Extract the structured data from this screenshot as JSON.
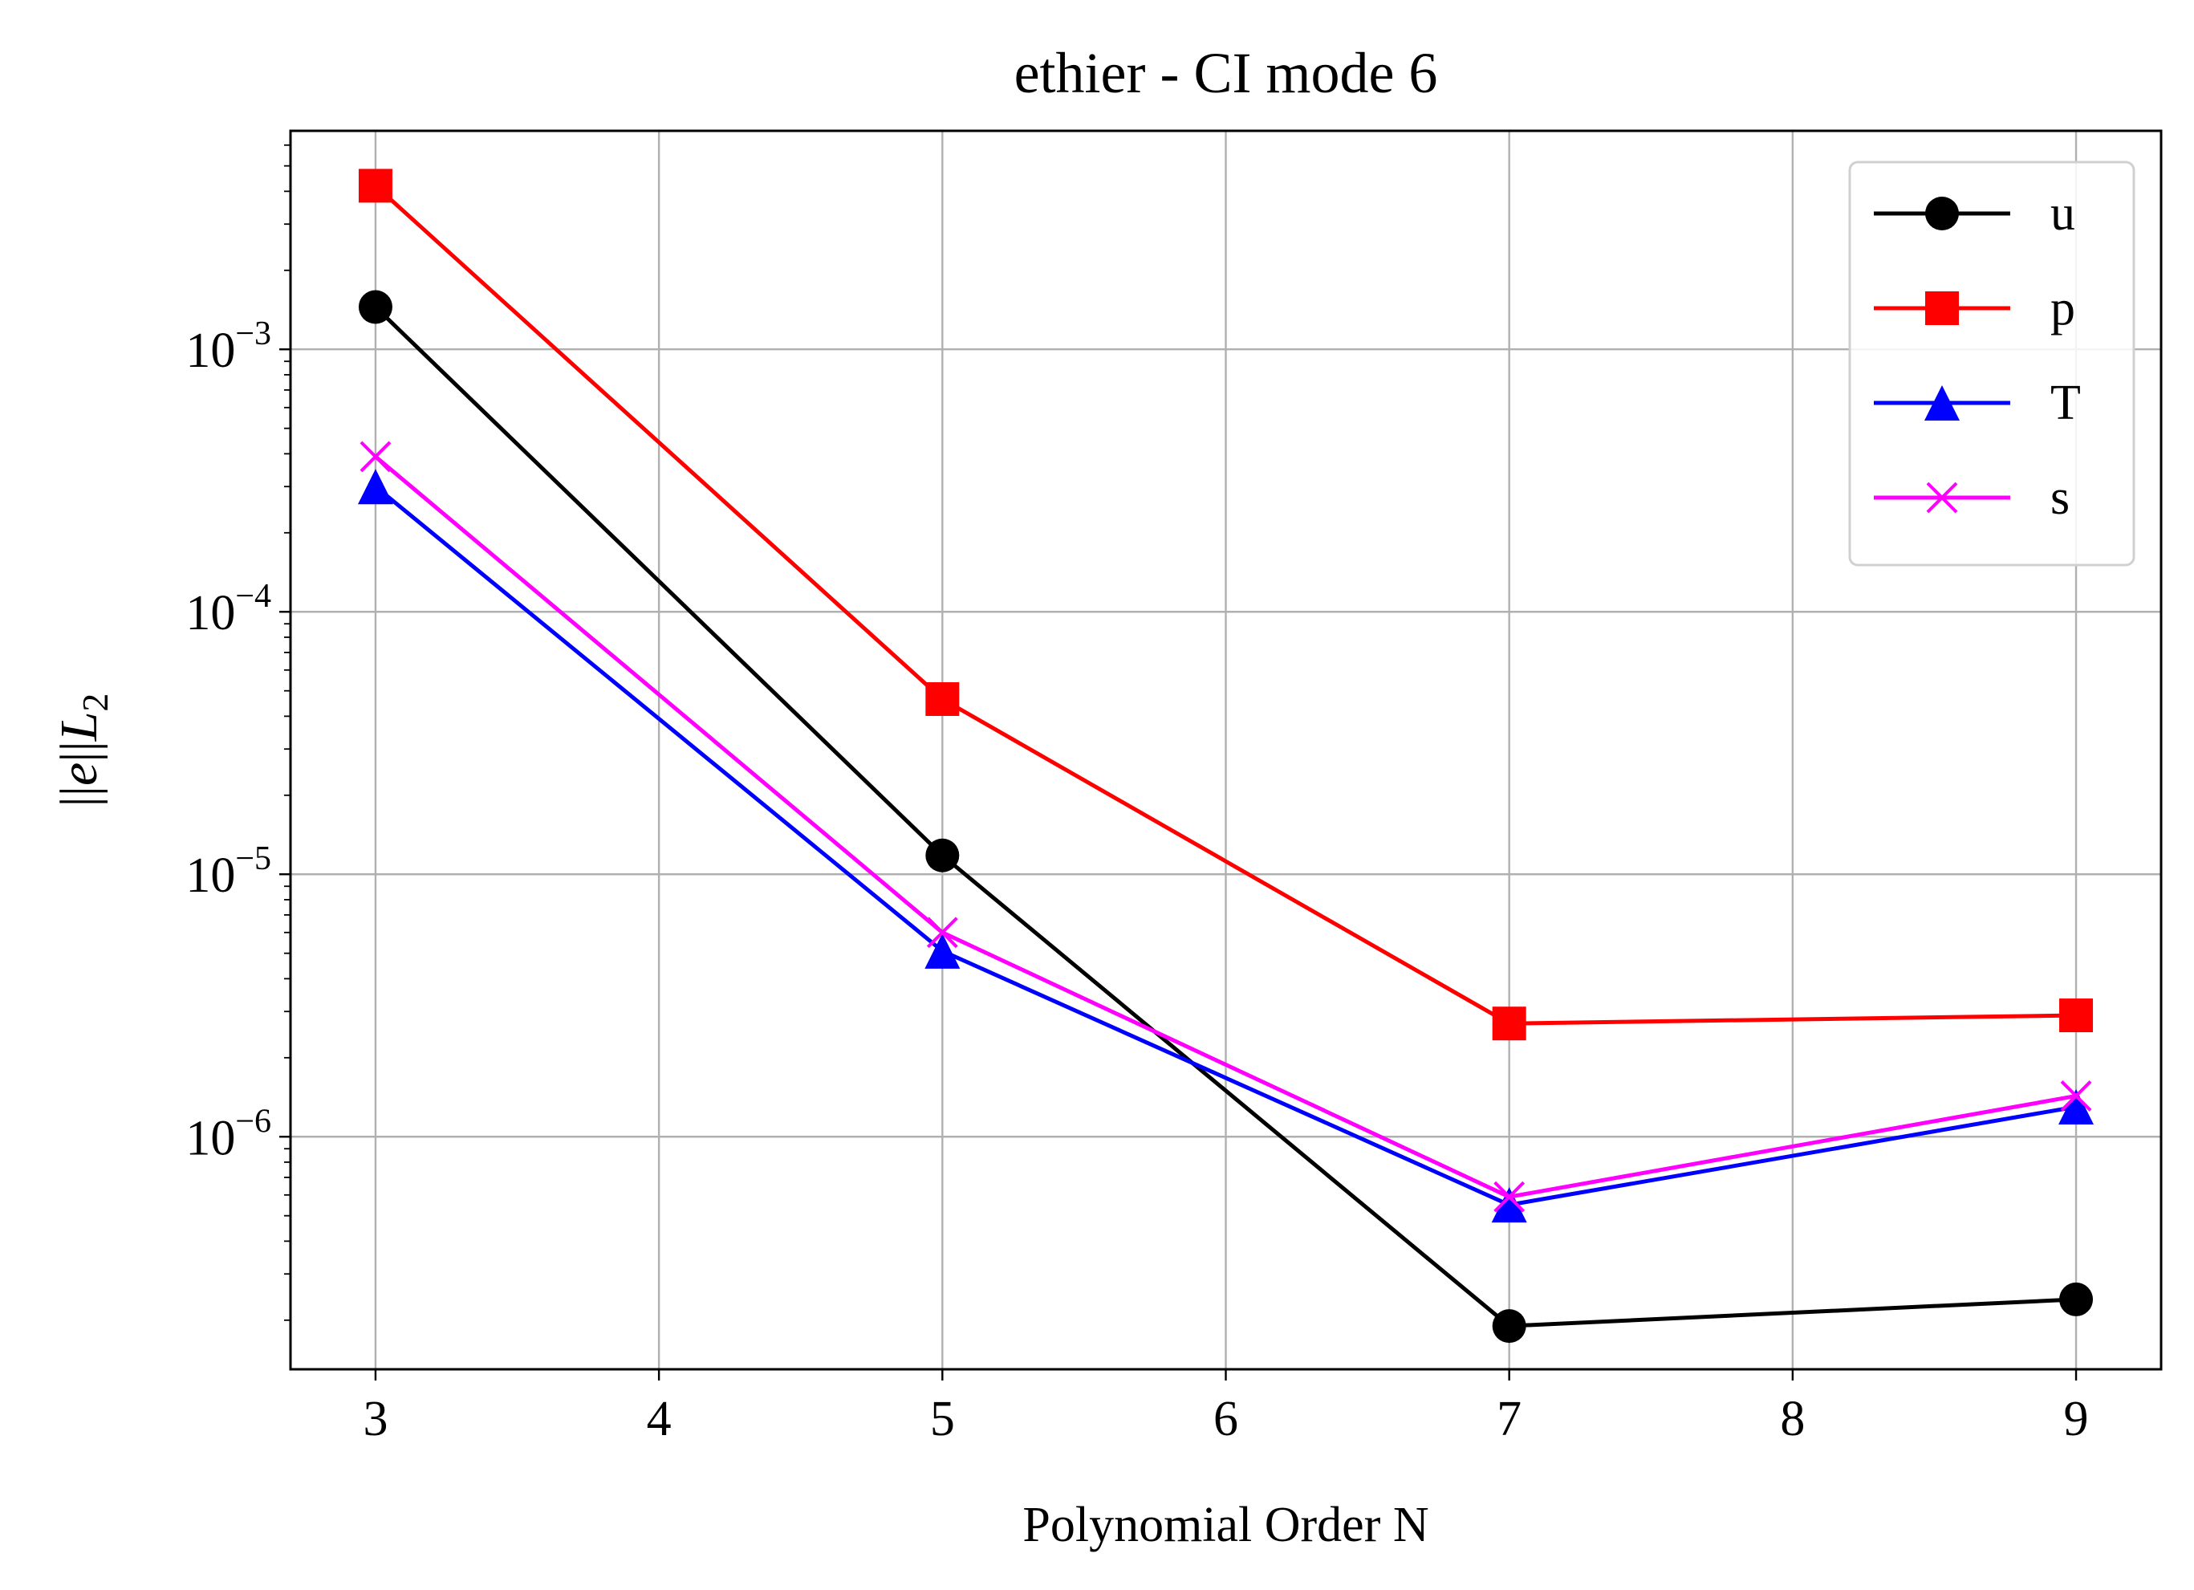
{
  "chart_data": {
    "type": "line",
    "title": "ethier - CI mode 6",
    "xlabel": "Polynomial Order N",
    "ylabel": "||e|| L₂",
    "yscale": "log",
    "xlim": [
      2.7,
      9.3
    ],
    "ylim": [
      1.3e-07,
      0.0068
    ],
    "x_ticks": [
      3,
      4,
      5,
      6,
      7,
      8,
      9
    ],
    "y_major_ticks": [
      {
        "value": 0.001,
        "base": "10",
        "exp": "−3"
      },
      {
        "value": 0.0001,
        "base": "10",
        "exp": "−4"
      },
      {
        "value": 1e-05,
        "base": "10",
        "exp": "−5"
      },
      {
        "value": 1e-06,
        "base": "10",
        "exp": "−6"
      }
    ],
    "grid": true,
    "legend_position": "top-right",
    "x": [
      3,
      5,
      7,
      9
    ],
    "series": [
      {
        "name": "u",
        "color": "#000000",
        "marker": "circle",
        "values": [
          0.00145,
          1.18e-05,
          1.9e-07,
          2.4e-07
        ]
      },
      {
        "name": "p",
        "color": "#ff0000",
        "marker": "square",
        "values": [
          0.0042,
          4.65e-05,
          2.7e-06,
          2.9e-06
        ]
      },
      {
        "name": "T",
        "color": "#0000ff",
        "marker": "triangle",
        "values": [
          0.0003,
          5.1e-06,
          5.5e-07,
          1.3e-06
        ]
      },
      {
        "name": "s",
        "color": "#ff00ff",
        "marker": "x",
        "values": [
          0.00039,
          6e-06,
          5.9e-07,
          1.43e-06
        ]
      }
    ]
  }
}
